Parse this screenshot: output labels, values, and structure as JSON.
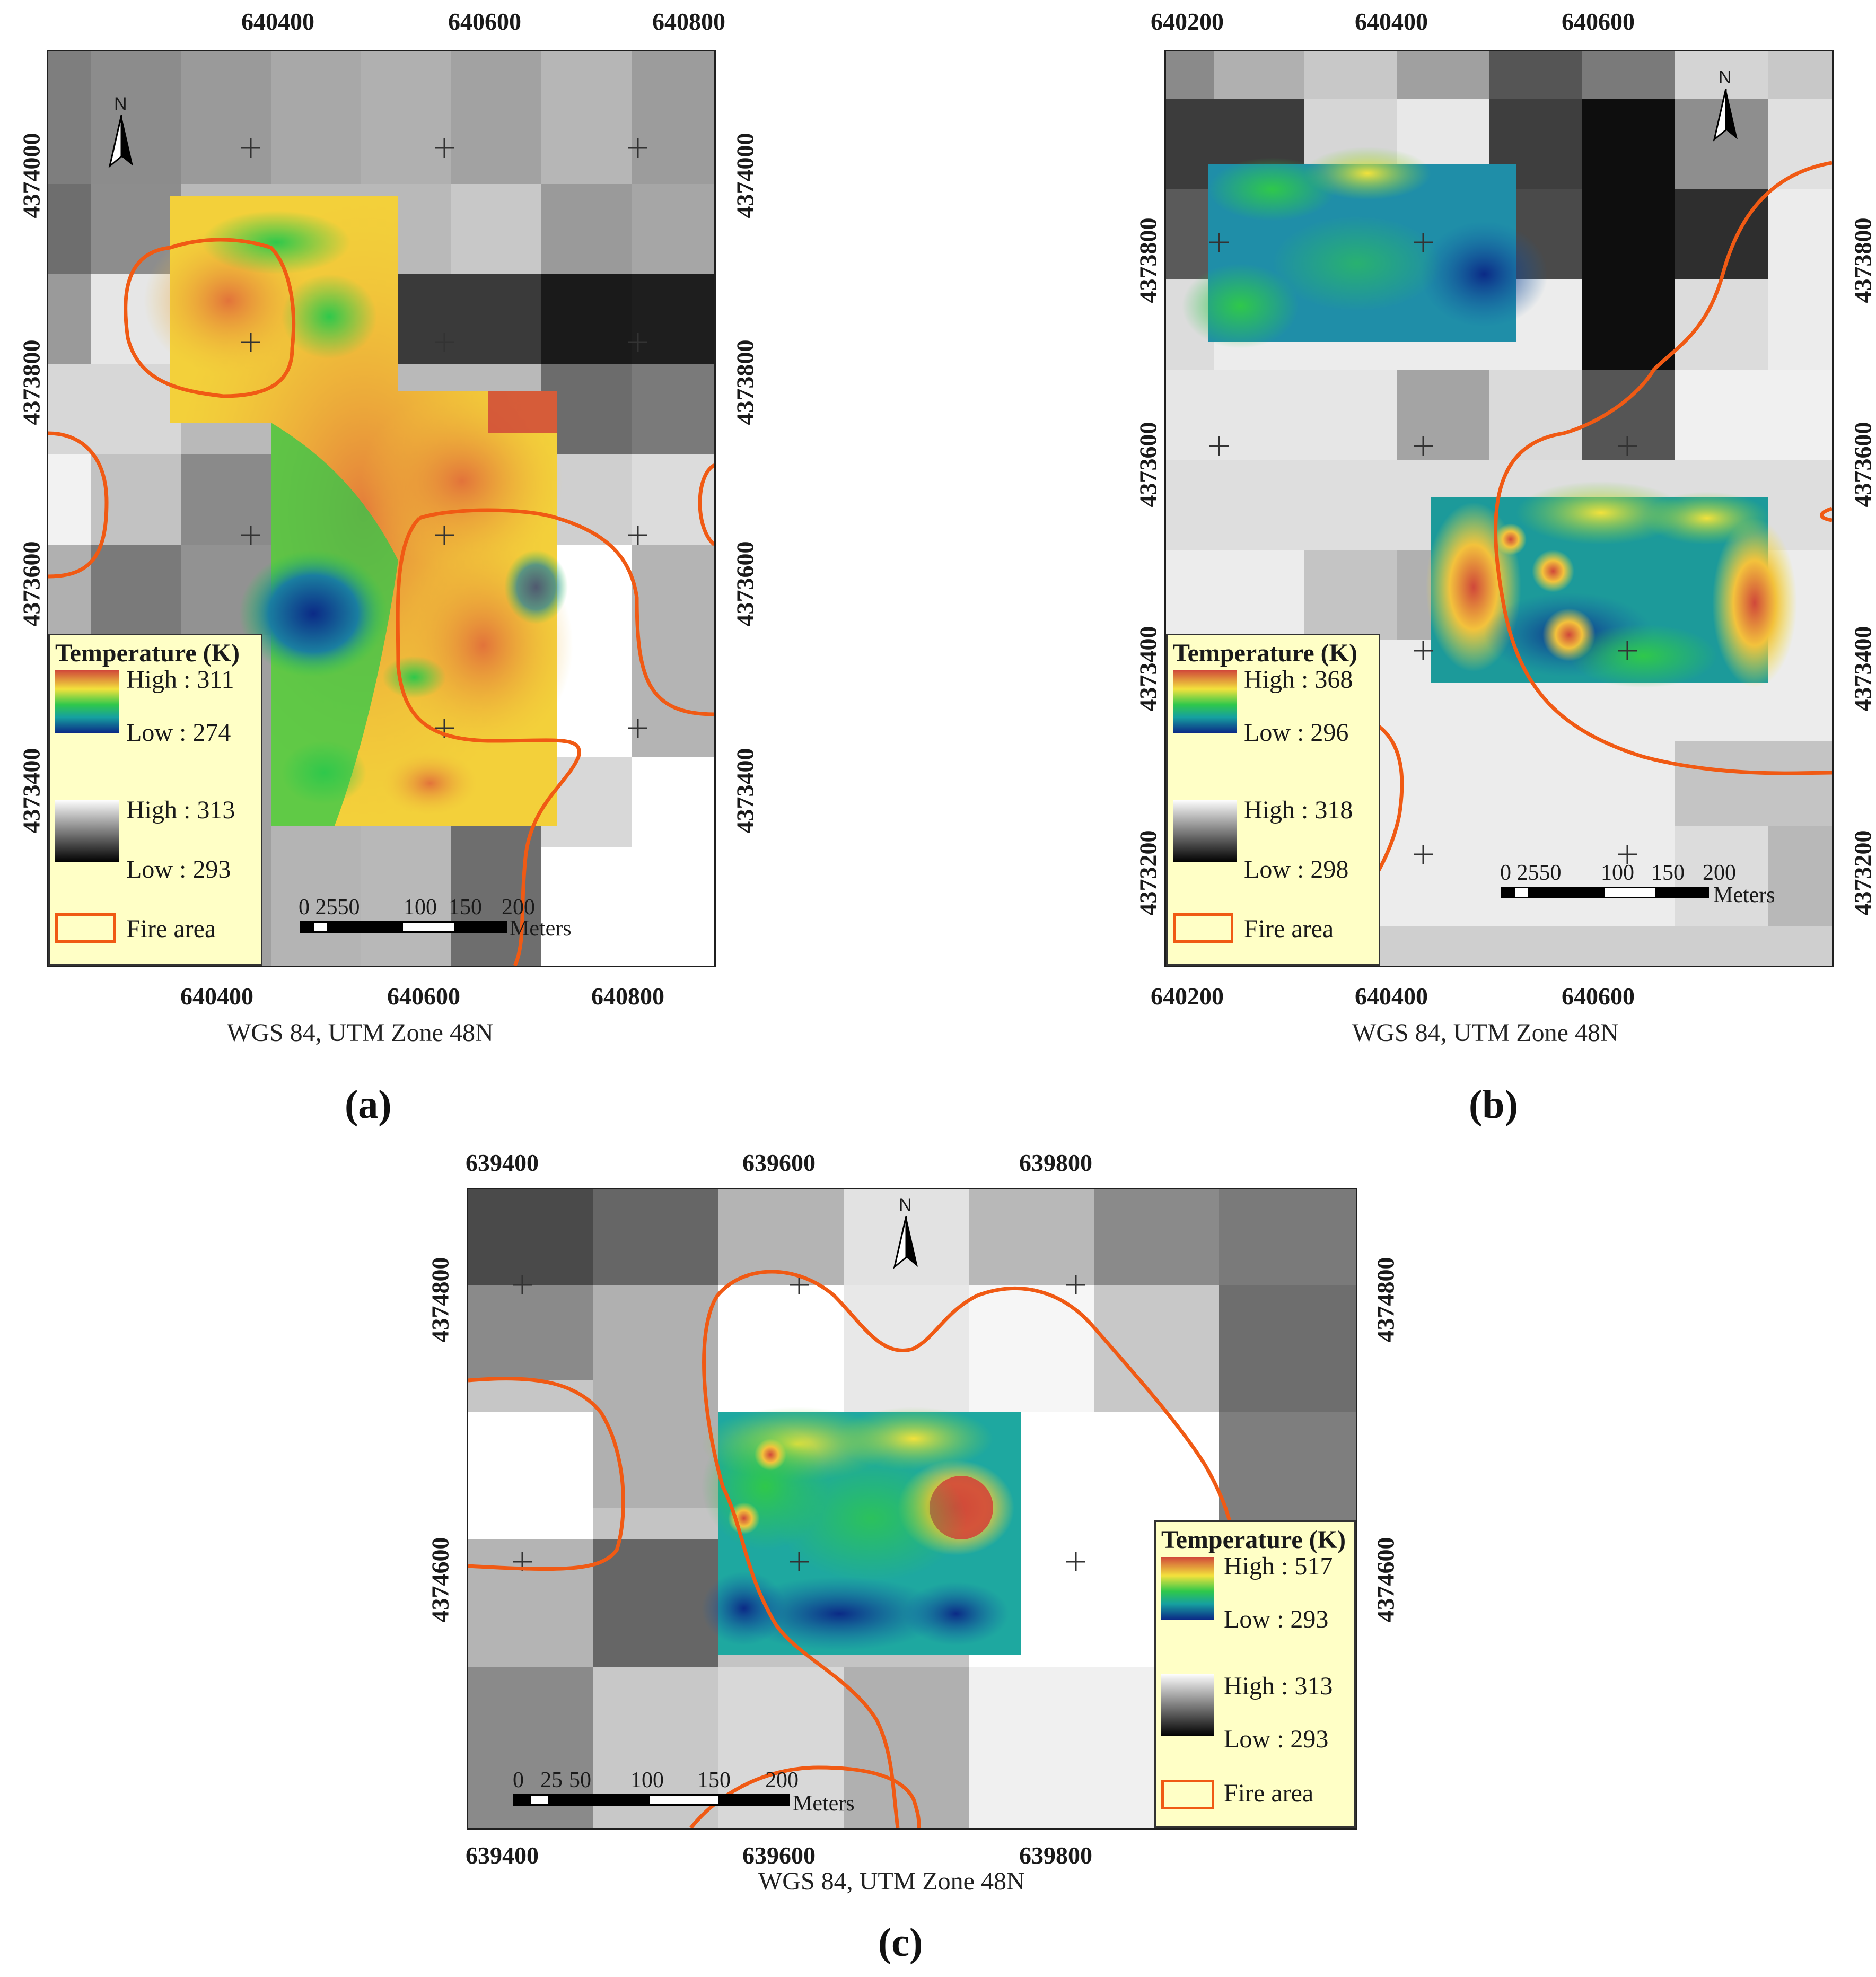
{
  "colors": {
    "fire_outline": "#f05a14",
    "legend_bg": "#ffffc6",
    "ramp_high": "#d0483a",
    "ramp_mid_high": "#f3e23c",
    "ramp_mid": "#2fc84b",
    "ramp_low": "#0b2a86"
  },
  "panels": [
    {
      "id": "a",
      "caption": "(a)",
      "crs": "WGS 84, UTM Zone 48N",
      "x_ticks": [
        "640400",
        "640600",
        "640800"
      ],
      "y_ticks": [
        "4374000",
        "4373800",
        "4373600",
        "4373400"
      ],
      "legend": {
        "title": "Temperature (K)",
        "color_high": "High : 311",
        "color_low": "Low : 274",
        "gray_high": "High : 313",
        "gray_low": "Low : 293",
        "fire": "Fire area"
      },
      "scalebar": {
        "labels": [
          "0 2550",
          "100",
          "150",
          "200"
        ],
        "unit": "Meters"
      },
      "north_label": "N"
    },
    {
      "id": "b",
      "caption": "(b)",
      "crs": "WGS 84, UTM Zone 48N",
      "x_ticks": [
        "640200",
        "640400",
        "640600"
      ],
      "y_ticks": [
        "4373800",
        "4373600",
        "4373400",
        "4373200"
      ],
      "legend": {
        "title": "Temperature (K)",
        "color_high": "High : 368",
        "color_low": "Low : 296",
        "gray_high": "High : 318",
        "gray_low": "Low : 298",
        "fire": "Fire area"
      },
      "scalebar": {
        "labels": [
          "0 2550",
          "100",
          "150",
          "200"
        ],
        "unit": "Meters"
      },
      "north_label": "N"
    },
    {
      "id": "c",
      "caption": "(c)",
      "crs": "WGS 84, UTM Zone 48N",
      "x_ticks": [
        "639400",
        "639600",
        "639800"
      ],
      "y_ticks": [
        "4374800",
        "4374600"
      ],
      "legend": {
        "title": "Temperature (K)",
        "color_high": "High : 517",
        "color_low": "Low : 293",
        "gray_high": "High : 313",
        "gray_low": "Low : 293",
        "fire": "Fire area"
      },
      "scalebar": {
        "labels": [
          "0",
          "25",
          "50",
          "100",
          "150",
          "200"
        ],
        "unit": "Meters"
      },
      "north_label": "N"
    }
  ]
}
